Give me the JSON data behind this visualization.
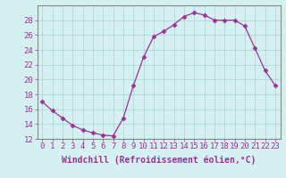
{
  "x": [
    0,
    1,
    2,
    3,
    4,
    5,
    6,
    7,
    8,
    9,
    10,
    11,
    12,
    13,
    14,
    15,
    16,
    17,
    18,
    19,
    20,
    21,
    22,
    23
  ],
  "y": [
    17.0,
    15.8,
    14.8,
    13.8,
    13.2,
    12.8,
    12.5,
    12.4,
    14.8,
    19.2,
    23.0,
    25.8,
    26.5,
    27.4,
    28.5,
    29.0,
    28.7,
    28.0,
    28.0,
    28.0,
    27.2,
    24.2,
    21.2,
    19.2
  ],
  "line_color": "#993399",
  "marker": "D",
  "marker_size": 2.5,
  "background_color": "#d4f0f0",
  "grid_color": "#b0d8d8",
  "xlabel": "Windchill (Refroidissement éolien,°C)",
  "xlabel_fontsize": 7,
  "tick_fontsize": 6.5,
  "ylim": [
    12,
    30
  ],
  "xlim": [
    -0.5,
    23.5
  ],
  "yticks": [
    12,
    14,
    16,
    18,
    20,
    22,
    24,
    26,
    28
  ],
  "xticks": [
    0,
    1,
    2,
    3,
    4,
    5,
    6,
    7,
    8,
    9,
    10,
    11,
    12,
    13,
    14,
    15,
    16,
    17,
    18,
    19,
    20,
    21,
    22,
    23
  ]
}
